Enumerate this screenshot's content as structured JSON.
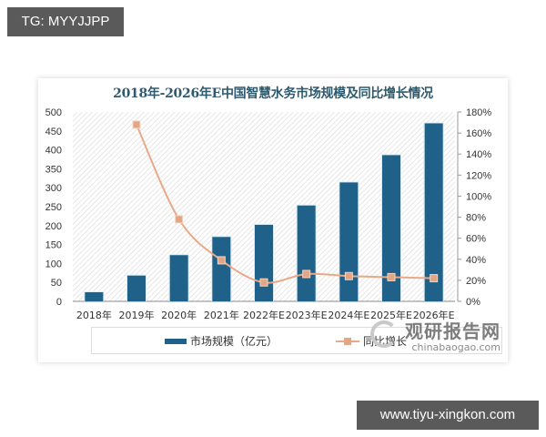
{
  "overlay": {
    "top_tag": "TG: MYYJJPP",
    "bottom_tag": "www.tiyu-xingkon.com"
  },
  "watermark": {
    "name_cn": "观研报告网",
    "url": "chinabaogao.com"
  },
  "colors": {
    "bar": "#1f6189",
    "line": "#e9a989",
    "marker": "#e3a584",
    "title": "#2e5a6e"
  },
  "chart_data": {
    "type": "bar",
    "title": "2018年-2026年E中国智慧水务市场规模及同比增长情况",
    "categories": [
      "2018年",
      "2019年",
      "2020年",
      "2021年",
      "2022年E",
      "2023年E",
      "2024年E",
      "2025年E",
      "2026年E"
    ],
    "series": [
      {
        "name": "市场规模（亿元）",
        "type": "bar",
        "axis": "left",
        "values": [
          24,
          68,
          122,
          170,
          202,
          253,
          314,
          386,
          470
        ]
      },
      {
        "name": "同比增长",
        "type": "line",
        "axis": "right",
        "values": [
          null,
          168,
          78,
          39,
          18,
          26,
          24,
          23,
          22
        ],
        "unit": "%"
      }
    ],
    "xlabel": "",
    "ylabel": "",
    "ylim": [
      0,
      500
    ],
    "y_ticks": [
      "0",
      "50",
      "100",
      "150",
      "200",
      "250",
      "300",
      "350",
      "400",
      "450",
      "500"
    ],
    "y2lim": [
      0,
      180
    ],
    "y2_ticks": [
      "0%",
      "20%",
      "40%",
      "60%",
      "80%",
      "100%",
      "120%",
      "140%",
      "160%",
      "180%"
    ],
    "grid": false,
    "background": "diagonal-hatch",
    "legend_position": "bottom",
    "legend": [
      "市场规模（亿元）",
      "同比增长"
    ]
  }
}
